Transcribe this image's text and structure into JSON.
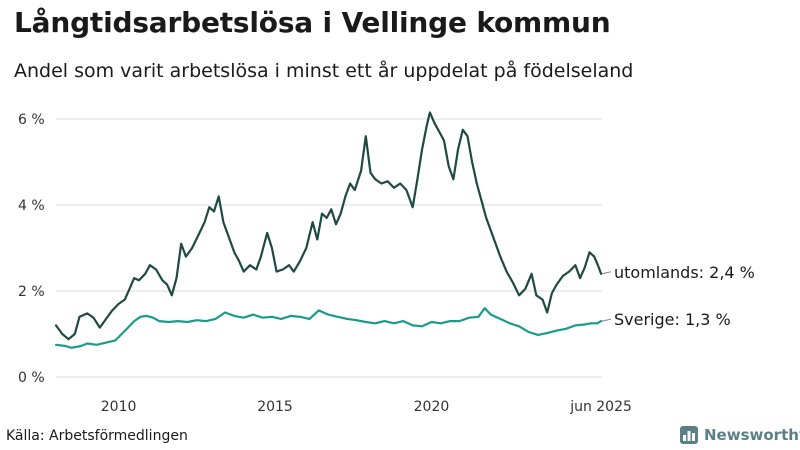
{
  "header": {
    "title": "Långtidsarbetslösa i Vellinge kommun",
    "subtitle": "Andel som varit arbetslösa i minst ett år uppdelat på födelseland"
  },
  "footer": {
    "source": "Källa: Arbetsförmedlingen",
    "brand": "Newsworthy",
    "brand_icon": "bar-chart-logo-icon"
  },
  "colors": {
    "utomlands": "#1f4a40",
    "sverige": "#1a9a8e",
    "grid": "#d9d9d9",
    "brand": "#5b7f86"
  },
  "chart_data": {
    "type": "line",
    "title": "Långtidsarbetslösa i Vellinge kommun",
    "subtitle": "Andel som varit arbetslösa i minst ett år uppdelat på födelseland",
    "xlabel": "",
    "ylabel": "",
    "xlim": [
      2008.0,
      2025.45
    ],
    "ylim": [
      0,
      6
    ],
    "x_ticks": [
      2010,
      2015,
      2020,
      2025.42
    ],
    "x_tick_labels": [
      "2010",
      "2015",
      "2020",
      "jun 2025"
    ],
    "y_ticks": [
      0,
      2,
      4,
      6
    ],
    "y_tick_labels": [
      "0 %",
      "2 %",
      "4 %",
      "6 %"
    ],
    "grid": "horizontal",
    "legend": "end-labels",
    "series": [
      {
        "key": "utomlands",
        "end_label": "utomlands: 2,4 %",
        "points": [
          [
            2008.0,
            1.2
          ],
          [
            2008.2,
            1.0
          ],
          [
            2008.4,
            0.88
          ],
          [
            2008.6,
            1.0
          ],
          [
            2008.75,
            1.4
          ],
          [
            2009.0,
            1.48
          ],
          [
            2009.2,
            1.38
          ],
          [
            2009.4,
            1.15
          ],
          [
            2009.6,
            1.35
          ],
          [
            2009.8,
            1.55
          ],
          [
            2010.0,
            1.7
          ],
          [
            2010.2,
            1.8
          ],
          [
            2010.35,
            2.05
          ],
          [
            2010.5,
            2.3
          ],
          [
            2010.65,
            2.25
          ],
          [
            2010.85,
            2.4
          ],
          [
            2011.0,
            2.6
          ],
          [
            2011.2,
            2.5
          ],
          [
            2011.4,
            2.25
          ],
          [
            2011.55,
            2.15
          ],
          [
            2011.7,
            1.9
          ],
          [
            2011.85,
            2.3
          ],
          [
            2012.0,
            3.1
          ],
          [
            2012.15,
            2.8
          ],
          [
            2012.35,
            3.0
          ],
          [
            2012.55,
            3.3
          ],
          [
            2012.75,
            3.6
          ],
          [
            2012.9,
            3.95
          ],
          [
            2013.05,
            3.85
          ],
          [
            2013.2,
            4.2
          ],
          [
            2013.35,
            3.6
          ],
          [
            2013.5,
            3.3
          ],
          [
            2013.7,
            2.9
          ],
          [
            2013.85,
            2.7
          ],
          [
            2014.0,
            2.45
          ],
          [
            2014.2,
            2.6
          ],
          [
            2014.4,
            2.5
          ],
          [
            2014.55,
            2.8
          ],
          [
            2014.75,
            3.35
          ],
          [
            2014.9,
            3.0
          ],
          [
            2015.05,
            2.45
          ],
          [
            2015.25,
            2.5
          ],
          [
            2015.45,
            2.6
          ],
          [
            2015.6,
            2.45
          ],
          [
            2015.8,
            2.7
          ],
          [
            2016.0,
            3.0
          ],
          [
            2016.2,
            3.6
          ],
          [
            2016.35,
            3.2
          ],
          [
            2016.5,
            3.8
          ],
          [
            2016.65,
            3.7
          ],
          [
            2016.8,
            3.9
          ],
          [
            2016.95,
            3.55
          ],
          [
            2017.1,
            3.8
          ],
          [
            2017.25,
            4.2
          ],
          [
            2017.4,
            4.5
          ],
          [
            2017.55,
            4.35
          ],
          [
            2017.75,
            4.8
          ],
          [
            2017.9,
            5.6
          ],
          [
            2018.05,
            4.75
          ],
          [
            2018.2,
            4.6
          ],
          [
            2018.4,
            4.5
          ],
          [
            2018.6,
            4.55
          ],
          [
            2018.8,
            4.4
          ],
          [
            2019.0,
            4.5
          ],
          [
            2019.2,
            4.35
          ],
          [
            2019.4,
            3.95
          ],
          [
            2019.55,
            4.6
          ],
          [
            2019.7,
            5.3
          ],
          [
            2019.85,
            5.85
          ],
          [
            2019.95,
            6.15
          ],
          [
            2020.1,
            5.9
          ],
          [
            2020.25,
            5.7
          ],
          [
            2020.4,
            5.5
          ],
          [
            2020.55,
            4.9
          ],
          [
            2020.7,
            4.6
          ],
          [
            2020.85,
            5.3
          ],
          [
            2021.0,
            5.75
          ],
          [
            2021.15,
            5.6
          ],
          [
            2021.3,
            5.0
          ],
          [
            2021.45,
            4.5
          ],
          [
            2021.6,
            4.1
          ],
          [
            2021.75,
            3.7
          ],
          [
            2021.9,
            3.4
          ],
          [
            2022.05,
            3.1
          ],
          [
            2022.2,
            2.8
          ],
          [
            2022.4,
            2.45
          ],
          [
            2022.6,
            2.2
          ],
          [
            2022.8,
            1.9
          ],
          [
            2023.0,
            2.05
          ],
          [
            2023.2,
            2.4
          ],
          [
            2023.35,
            1.9
          ],
          [
            2023.55,
            1.8
          ],
          [
            2023.7,
            1.5
          ],
          [
            2023.85,
            1.95
          ],
          [
            2024.0,
            2.15
          ],
          [
            2024.2,
            2.35
          ],
          [
            2024.4,
            2.45
          ],
          [
            2024.6,
            2.6
          ],
          [
            2024.75,
            2.3
          ],
          [
            2024.9,
            2.55
          ],
          [
            2025.05,
            2.9
          ],
          [
            2025.2,
            2.8
          ],
          [
            2025.32,
            2.6
          ],
          [
            2025.42,
            2.4
          ]
        ]
      },
      {
        "key": "sverige",
        "end_label": "Sverige: 1,3 %",
        "points": [
          [
            2008.0,
            0.75
          ],
          [
            2008.3,
            0.72
          ],
          [
            2008.5,
            0.68
          ],
          [
            2008.8,
            0.72
          ],
          [
            2009.0,
            0.78
          ],
          [
            2009.3,
            0.75
          ],
          [
            2009.6,
            0.8
          ],
          [
            2009.9,
            0.85
          ],
          [
            2010.1,
            1.0
          ],
          [
            2010.3,
            1.15
          ],
          [
            2010.5,
            1.3
          ],
          [
            2010.7,
            1.4
          ],
          [
            2010.9,
            1.42
          ],
          [
            2011.1,
            1.38
          ],
          [
            2011.3,
            1.3
          ],
          [
            2011.6,
            1.28
          ],
          [
            2011.9,
            1.3
          ],
          [
            2012.2,
            1.28
          ],
          [
            2012.5,
            1.32
          ],
          [
            2012.8,
            1.3
          ],
          [
            2013.1,
            1.35
          ],
          [
            2013.4,
            1.5
          ],
          [
            2013.7,
            1.42
          ],
          [
            2014.0,
            1.38
          ],
          [
            2014.3,
            1.45
          ],
          [
            2014.6,
            1.38
          ],
          [
            2014.9,
            1.4
          ],
          [
            2015.2,
            1.35
          ],
          [
            2015.5,
            1.42
          ],
          [
            2015.8,
            1.4
          ],
          [
            2016.1,
            1.35
          ],
          [
            2016.4,
            1.55
          ],
          [
            2016.7,
            1.45
          ],
          [
            2017.0,
            1.4
          ],
          [
            2017.3,
            1.35
          ],
          [
            2017.6,
            1.32
          ],
          [
            2017.9,
            1.28
          ],
          [
            2018.2,
            1.25
          ],
          [
            2018.5,
            1.3
          ],
          [
            2018.8,
            1.25
          ],
          [
            2019.1,
            1.3
          ],
          [
            2019.4,
            1.2
          ],
          [
            2019.7,
            1.18
          ],
          [
            2020.0,
            1.28
          ],
          [
            2020.3,
            1.25
          ],
          [
            2020.6,
            1.3
          ],
          [
            2020.9,
            1.3
          ],
          [
            2021.2,
            1.38
          ],
          [
            2021.5,
            1.4
          ],
          [
            2021.7,
            1.6
          ],
          [
            2021.9,
            1.45
          ],
          [
            2022.2,
            1.35
          ],
          [
            2022.5,
            1.25
          ],
          [
            2022.8,
            1.18
          ],
          [
            2023.1,
            1.05
          ],
          [
            2023.4,
            0.98
          ],
          [
            2023.7,
            1.02
          ],
          [
            2024.0,
            1.08
          ],
          [
            2024.3,
            1.12
          ],
          [
            2024.6,
            1.2
          ],
          [
            2024.9,
            1.22
          ],
          [
            2025.1,
            1.25
          ],
          [
            2025.3,
            1.25
          ],
          [
            2025.42,
            1.3
          ]
        ]
      }
    ]
  }
}
